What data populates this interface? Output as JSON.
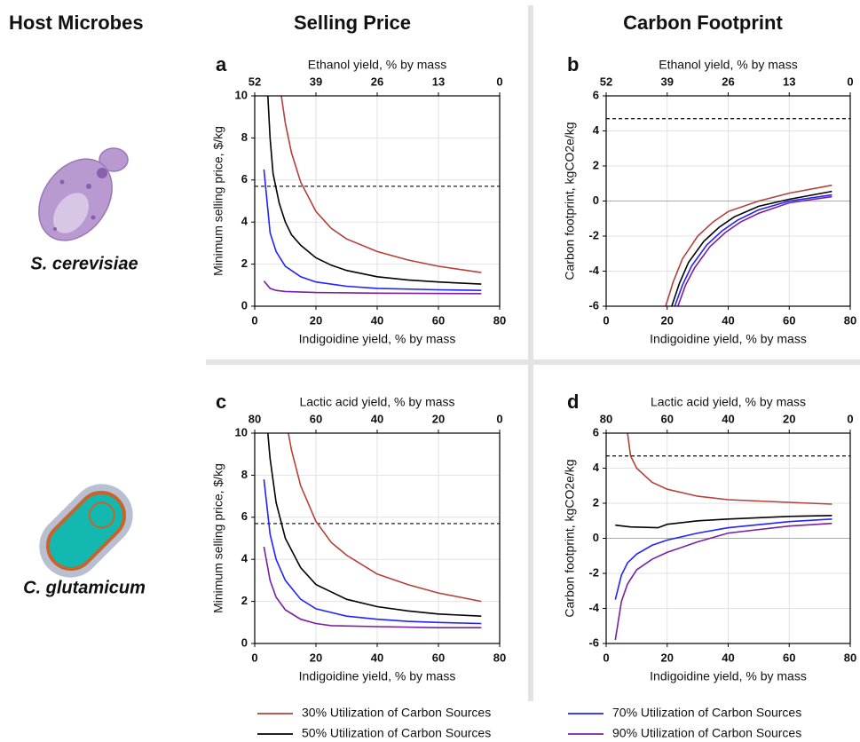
{
  "headers": {
    "host": "Host Microbes",
    "price": "Selling Price",
    "carbon": "Carbon Footprint"
  },
  "organisms": [
    "S. cerevisiae",
    "C. glutamicum"
  ],
  "chart_data": [
    {
      "type": "line",
      "panel": "a",
      "xlabel": "Indigoidine yield, % by mass",
      "x2label": "Ethanol yield, % by mass",
      "ylabel": "Minimum selling price, $/kg",
      "xlim": [
        0,
        80
      ],
      "xticks": [
        0,
        20,
        40,
        60,
        80
      ],
      "x2lim": [
        52,
        0
      ],
      "x2ticks": [
        52,
        39,
        26,
        13,
        0
      ],
      "ylim": [
        0,
        10
      ],
      "yticks": [
        0,
        2,
        4,
        6,
        8,
        10
      ],
      "reference_line": 5.7,
      "grid": true,
      "series": [
        {
          "name": "30% Utilization of Carbon Sources",
          "color": "#b5403a",
          "x": [
            8.7,
            10,
            12,
            15,
            20,
            25,
            30,
            40,
            50,
            60,
            74
          ],
          "values": [
            10,
            8.7,
            7.3,
            5.9,
            4.5,
            3.7,
            3.2,
            2.6,
            2.2,
            1.9,
            1.6
          ]
        },
        {
          "name": "50% Utilization of Carbon Sources",
          "color": "#000000",
          "x": [
            4.3,
            5,
            6,
            8,
            10,
            12,
            15,
            20,
            25,
            30,
            40,
            50,
            60,
            74
          ],
          "values": [
            10,
            8,
            6.3,
            4.9,
            4,
            3.4,
            2.9,
            2.3,
            1.95,
            1.7,
            1.4,
            1.25,
            1.15,
            1.05
          ]
        },
        {
          "name": "70% Utilization of Carbon Sources",
          "color": "#2222ff",
          "x": [
            3,
            5,
            7,
            10,
            15,
            20,
            30,
            40,
            60,
            74
          ],
          "values": [
            6.5,
            3.5,
            2.6,
            1.9,
            1.4,
            1.15,
            0.95,
            0.85,
            0.78,
            0.75
          ]
        },
        {
          "name": "90% Utilization of Carbon Sources",
          "color": "#7b1fa2",
          "x": [
            3,
            5,
            7,
            10,
            20,
            40,
            74
          ],
          "values": [
            1.2,
            0.85,
            0.75,
            0.7,
            0.65,
            0.62,
            0.6
          ]
        }
      ]
    },
    {
      "type": "line",
      "panel": "b",
      "xlabel": "Indigoidine yield, % by mass",
      "x2label": "Ethanol yield, % by mass",
      "ylabel": "Carbon footprint, kgCO2e/kg",
      "xlim": [
        0,
        80
      ],
      "xticks": [
        0,
        20,
        40,
        60,
        80
      ],
      "x2lim": [
        52,
        0
      ],
      "x2ticks": [
        52,
        39,
        26,
        13,
        0
      ],
      "ylim": [
        -6,
        6
      ],
      "yticks": [
        -6,
        -4,
        -2,
        0,
        2,
        4,
        6
      ],
      "reference_line": 4.7,
      "grid": true,
      "series": [
        {
          "color": "#b5403a",
          "x": [
            19.5,
            22,
            25,
            30,
            35,
            40,
            50,
            60,
            74
          ],
          "values": [
            -6,
            -4.6,
            -3.3,
            -2.0,
            -1.2,
            -0.6,
            0.0,
            0.45,
            0.9
          ]
        },
        {
          "color": "#000000",
          "x": [
            21.5,
            24,
            27,
            32,
            37,
            42,
            50,
            60,
            74
          ],
          "values": [
            -6,
            -4.7,
            -3.5,
            -2.3,
            -1.5,
            -0.9,
            -0.3,
            0.1,
            0.55
          ]
        },
        {
          "color": "#2222ff",
          "x": [
            22.5,
            25,
            28,
            33,
            38,
            43,
            50,
            60,
            74
          ],
          "values": [
            -6,
            -4.8,
            -3.7,
            -2.5,
            -1.7,
            -1.1,
            -0.5,
            0.0,
            0.35
          ]
        },
        {
          "color": "#7b1fa2",
          "x": [
            23.5,
            26,
            29,
            34,
            39,
            44,
            50,
            60,
            74
          ],
          "values": [
            -6,
            -4.8,
            -3.8,
            -2.6,
            -1.8,
            -1.2,
            -0.7,
            -0.1,
            0.25
          ]
        }
      ]
    },
    {
      "type": "line",
      "panel": "c",
      "xlabel": "Indigoidine yield, % by mass",
      "x2label": "Lactic acid yield, % by mass",
      "ylabel": "Minimum selling price, $/kg",
      "xlim": [
        0,
        80
      ],
      "xticks": [
        0,
        20,
        40,
        60,
        80
      ],
      "x2lim": [
        80,
        0
      ],
      "x2ticks": [
        80,
        60,
        40,
        20,
        0
      ],
      "ylim": [
        0,
        10
      ],
      "yticks": [
        0,
        2,
        4,
        6,
        8,
        10
      ],
      "reference_line": 5.7,
      "grid": true,
      "series": [
        {
          "color": "#b5403a",
          "x": [
            11,
            12,
            15,
            20,
            25,
            30,
            40,
            50,
            60,
            74
          ],
          "values": [
            10,
            9.2,
            7.5,
            5.8,
            4.8,
            4.2,
            3.3,
            2.8,
            2.4,
            2.0
          ]
        },
        {
          "color": "#000000",
          "x": [
            4.3,
            5,
            7,
            10,
            15,
            20,
            30,
            40,
            50,
            60,
            74
          ],
          "values": [
            10,
            8.8,
            6.7,
            5.0,
            3.6,
            2.8,
            2.1,
            1.75,
            1.55,
            1.4,
            1.3
          ]
        },
        {
          "color": "#2222ff",
          "x": [
            3,
            5,
            7,
            10,
            15,
            20,
            30,
            40,
            50,
            60,
            74
          ],
          "values": [
            7.8,
            5.2,
            4.0,
            3.0,
            2.1,
            1.65,
            1.3,
            1.15,
            1.05,
            1.0,
            0.95
          ]
        },
        {
          "color": "#7b1fa2",
          "x": [
            3,
            5,
            7,
            10,
            15,
            20,
            25,
            40,
            60,
            74
          ],
          "values": [
            4.6,
            3.0,
            2.2,
            1.6,
            1.15,
            0.95,
            0.85,
            0.8,
            0.75,
            0.75
          ]
        }
      ]
    },
    {
      "type": "line",
      "panel": "d",
      "xlabel": "Indigoidine yield, % by mass",
      "x2label": "Lactic acid yield, % by mass",
      "ylabel": "Carbon footprint, kgCO2e/kg",
      "xlim": [
        0,
        80
      ],
      "xticks": [
        0,
        20,
        40,
        60,
        80
      ],
      "x2lim": [
        80,
        0
      ],
      "x2ticks": [
        80,
        60,
        40,
        20,
        0
      ],
      "ylim": [
        -6,
        6
      ],
      "yticks": [
        -6,
        -4,
        -2,
        0,
        2,
        4,
        6
      ],
      "reference_line": 4.7,
      "grid": true,
      "series": [
        {
          "color": "#b5403a",
          "x": [
            7,
            8,
            10,
            15,
            20,
            30,
            40,
            60,
            74
          ],
          "values": [
            6,
            4.7,
            4.0,
            3.2,
            2.8,
            2.4,
            2.2,
            2.05,
            1.95
          ]
        },
        {
          "color": "#000000",
          "x": [
            3,
            8,
            17,
            20,
            30,
            40,
            60,
            74
          ],
          "values": [
            0.75,
            0.65,
            0.6,
            0.8,
            1.0,
            1.1,
            1.25,
            1.3
          ]
        },
        {
          "color": "#2222ff",
          "x": [
            3,
            5,
            7,
            10,
            15,
            20,
            30,
            40,
            60,
            74
          ],
          "values": [
            -3.5,
            -2.1,
            -1.4,
            -0.9,
            -0.4,
            -0.1,
            0.3,
            0.6,
            0.95,
            1.1
          ]
        },
        {
          "color": "#7b1fa2",
          "x": [
            3,
            5,
            7,
            10,
            15,
            20,
            30,
            40,
            60,
            74
          ],
          "values": [
            -5.8,
            -3.6,
            -2.6,
            -1.8,
            -1.2,
            -0.8,
            -0.2,
            0.3,
            0.7,
            0.85
          ]
        }
      ]
    }
  ]
}
